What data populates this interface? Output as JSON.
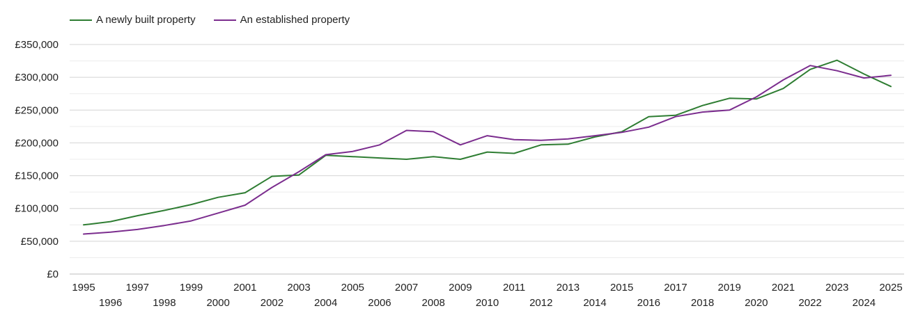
{
  "chart_data": {
    "type": "line",
    "title": "",
    "xlabel": "",
    "ylabel": "",
    "ylim": [
      0,
      350000
    ],
    "yticks": [
      0,
      50000,
      100000,
      150000,
      200000,
      250000,
      300000,
      350000
    ],
    "ytick_labels": [
      "£0",
      "£50,000",
      "£100,000",
      "£150,000",
      "£200,000",
      "£250,000",
      "£300,000",
      "£350,000"
    ],
    "x": [
      "1995",
      "1996",
      "1997",
      "1998",
      "1999",
      "2000",
      "2001",
      "2002",
      "2003",
      "2004",
      "2005",
      "2006",
      "2007",
      "2008",
      "2009",
      "2010",
      "2011",
      "2012",
      "2013",
      "2014",
      "2015",
      "2016",
      "2017",
      "2018",
      "2019",
      "2020",
      "2021",
      "2022",
      "2023",
      "2024",
      "2025"
    ],
    "series": [
      {
        "name": "A newly built property",
        "color": "#2e7d32",
        "values": [
          75000,
          80000,
          89000,
          97000,
          106000,
          117000,
          124000,
          149000,
          151000,
          181000,
          179000,
          177000,
          175000,
          179000,
          175000,
          186000,
          184000,
          197000,
          198000,
          209000,
          217000,
          240000,
          242000,
          257000,
          268000,
          267000,
          283000,
          312000,
          326000,
          305000,
          286000
        ]
      },
      {
        "name": "An established property",
        "color": "#7b2d8e",
        "values": [
          61000,
          64000,
          68000,
          74000,
          81000,
          93000,
          105000,
          132000,
          156000,
          182000,
          187000,
          197000,
          219000,
          217000,
          197000,
          211000,
          205000,
          204000,
          206000,
          211000,
          216000,
          224000,
          240000,
          247000,
          250000,
          270000,
          296000,
          318000,
          310000,
          299000,
          303000
        ]
      }
    ],
    "legend_position": "top-left",
    "grid": true
  }
}
